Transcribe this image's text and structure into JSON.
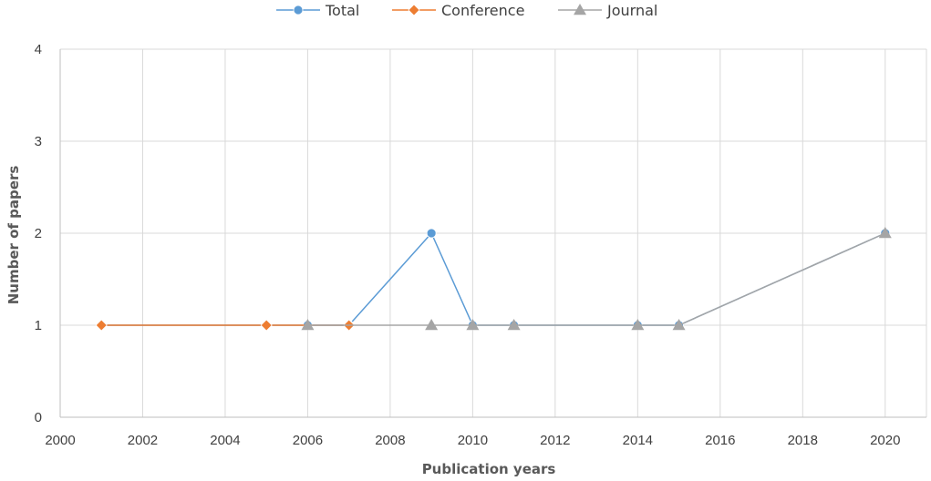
{
  "chart_data": {
    "type": "line",
    "title": "",
    "xlabel": "Publication years",
    "ylabel": "Number of papers",
    "xlim": [
      2000,
      2021
    ],
    "ylim": [
      0,
      4
    ],
    "xticks": [
      2000,
      2002,
      2004,
      2006,
      2008,
      2010,
      2012,
      2014,
      2016,
      2018,
      2020
    ],
    "yticks": [
      0,
      1,
      2,
      3,
      4
    ],
    "grid": true,
    "legend_position": "top-center",
    "series": [
      {
        "name": "Total",
        "color": "#5B9BD5",
        "marker": "circle",
        "x": [
          2001,
          2005,
          2006,
          2007,
          2009,
          2010,
          2011,
          2014,
          2015,
          2020
        ],
        "y": [
          1,
          1,
          1,
          1,
          2,
          1,
          1,
          1,
          1,
          2
        ]
      },
      {
        "name": "Conference",
        "color": "#ED7D31",
        "marker": "diamond",
        "x": [
          2001,
          2005,
          2007
        ],
        "y": [
          1,
          1,
          1
        ]
      },
      {
        "name": "Journal",
        "color": "#A5A5A5",
        "marker": "triangle",
        "x": [
          2006,
          2009,
          2010,
          2011,
          2014,
          2015,
          2020
        ],
        "y": [
          1,
          1,
          1,
          1,
          1,
          1,
          2
        ]
      }
    ]
  }
}
